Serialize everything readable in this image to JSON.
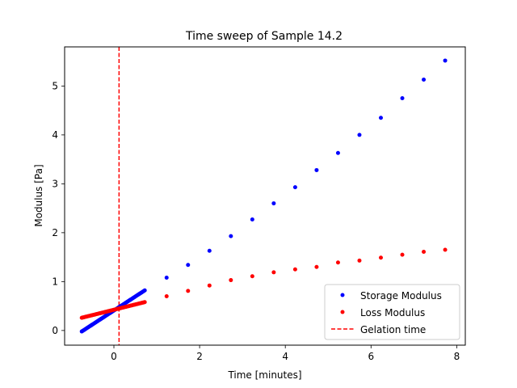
{
  "chart_data": {
    "type": "scatter",
    "title": "Time sweep of Sample 14.2",
    "xlabel": "Time [minutes]",
    "ylabel": "Modulus [Pa]",
    "xlim": [
      -1.15,
      8.2
    ],
    "ylim": [
      -0.3,
      5.8
    ],
    "xticks": [
      0,
      2,
      4,
      6,
      8
    ],
    "yticks": [
      0,
      1,
      2,
      3,
      4,
      5
    ],
    "grid": false,
    "legend_location": "lower-right",
    "gelation_time": 0.12,
    "series": [
      {
        "name": "Storage Modulus",
        "color": "#0000ff",
        "dense_segment": {
          "x_start": -0.75,
          "x_end": 0.72,
          "y_start": -0.02,
          "y_end": 0.82,
          "count": 60
        },
        "x": [
          1.23,
          1.73,
          2.23,
          2.73,
          3.23,
          3.73,
          4.23,
          4.73,
          5.23,
          5.73,
          6.23,
          6.73,
          7.23,
          7.73
        ],
        "y": [
          1.08,
          1.34,
          1.63,
          1.93,
          2.27,
          2.6,
          2.93,
          3.28,
          3.63,
          4.0,
          4.35,
          4.75,
          5.13,
          5.52
        ]
      },
      {
        "name": "Loss Modulus",
        "color": "#ff0000",
        "dense_segment": {
          "x_start": -0.75,
          "x_end": 0.72,
          "y_start": 0.26,
          "y_end": 0.58,
          "count": 60
        },
        "x": [
          1.23,
          1.73,
          2.23,
          2.73,
          3.23,
          3.73,
          4.23,
          4.73,
          5.23,
          5.73,
          6.23,
          6.73,
          7.23,
          7.73
        ],
        "y": [
          0.7,
          0.81,
          0.92,
          1.03,
          1.11,
          1.19,
          1.25,
          1.3,
          1.39,
          1.43,
          1.49,
          1.55,
          1.61,
          1.65
        ]
      }
    ],
    "vline": {
      "name": "Gelation time",
      "x": 0.12,
      "color": "#ff0000",
      "style": "dashed"
    }
  }
}
